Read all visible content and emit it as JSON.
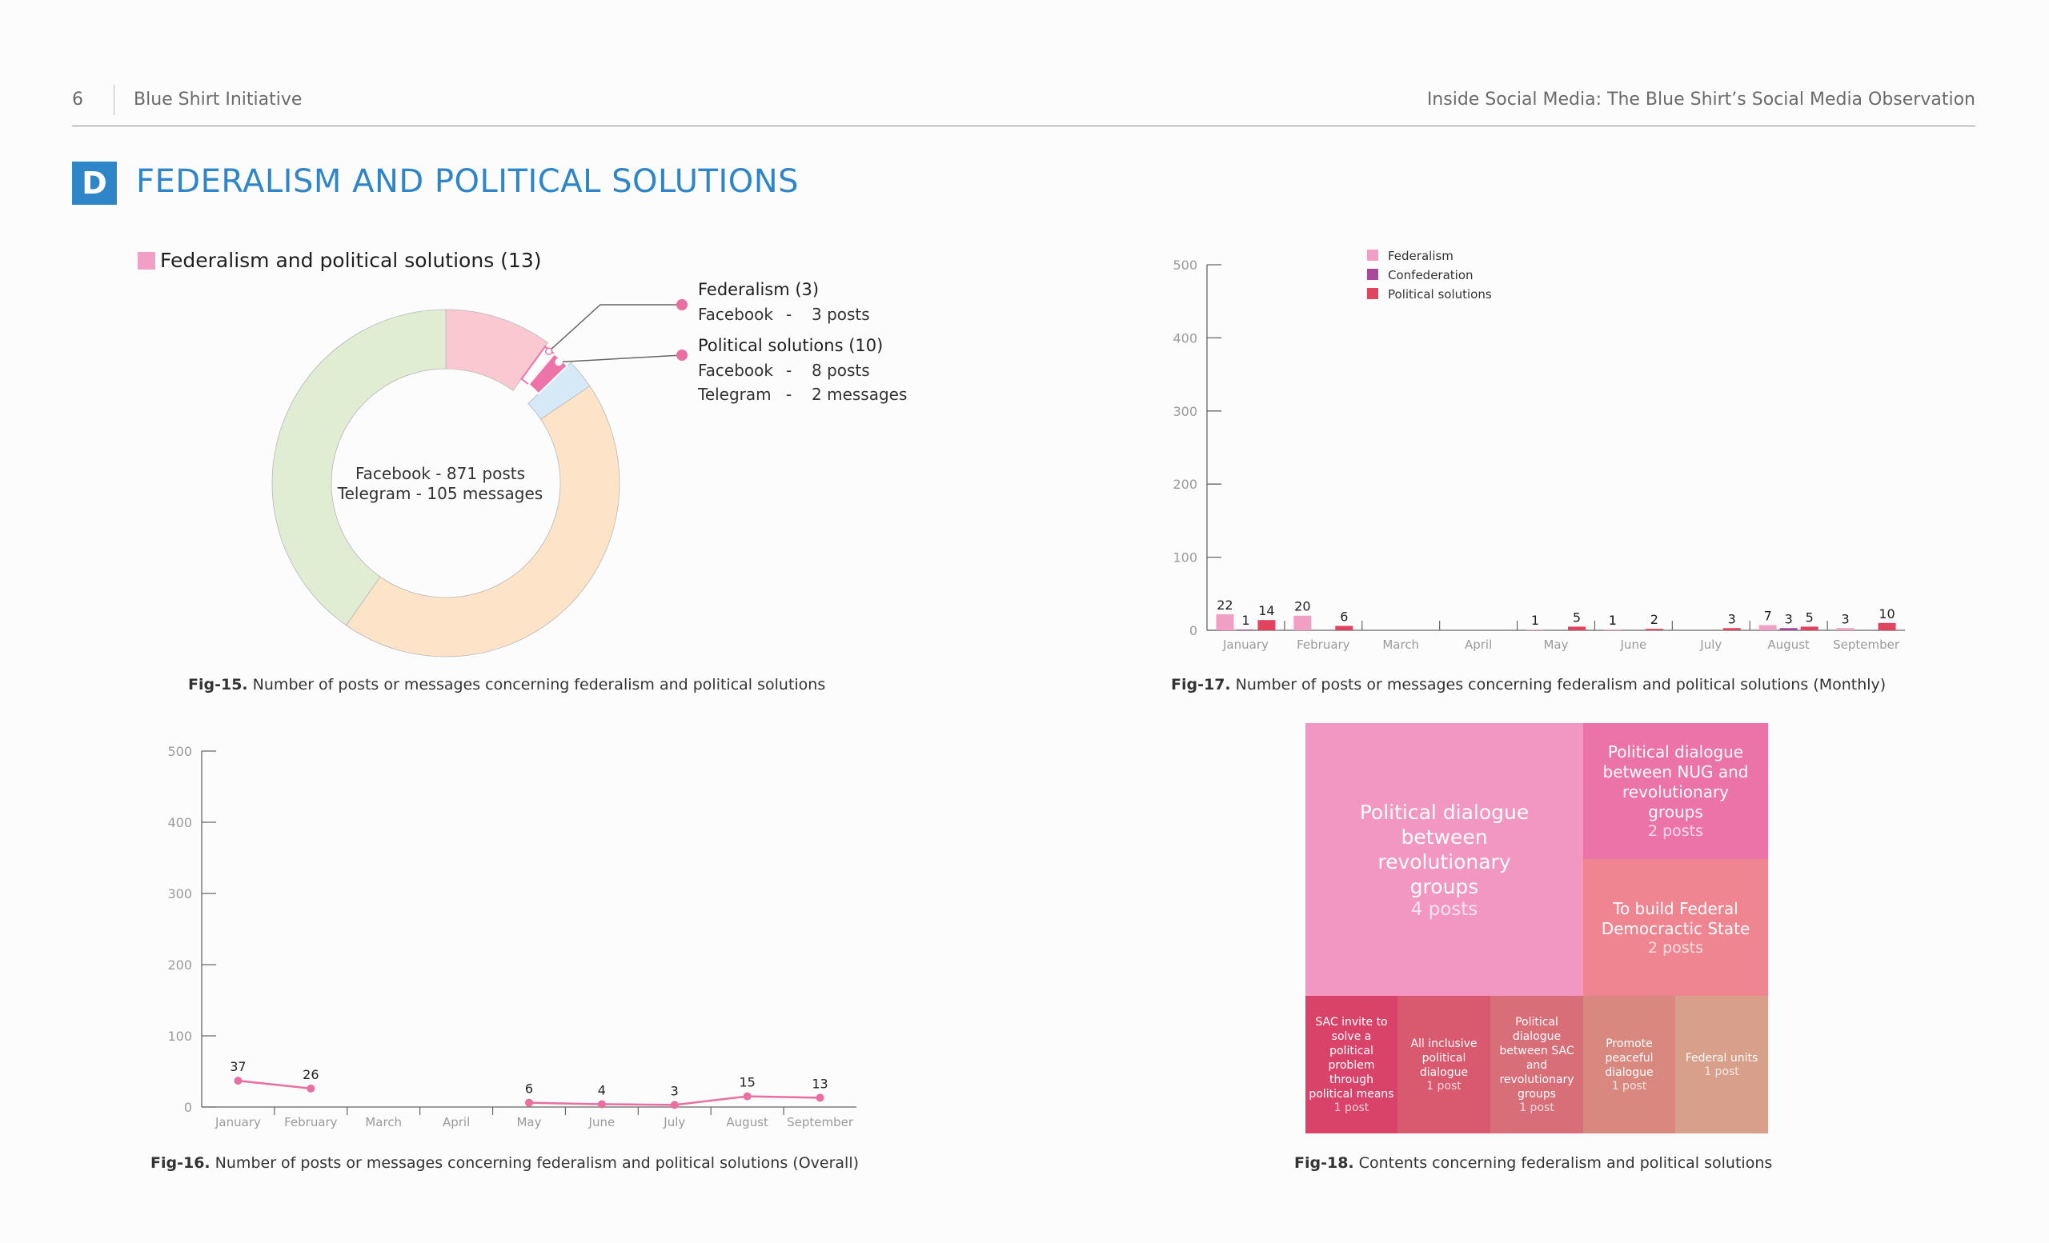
{
  "header": {
    "page_number": "6",
    "org": "Blue Shirt Initiative",
    "report_title": "Inside Social Media: The Blue Shirt’s Social Media Observation"
  },
  "section": {
    "badge": "D",
    "title": "FEDERALISM AND POLITICAL SOLUTIONS"
  },
  "colors": {
    "accent_blue": "#2e86c8",
    "federalism": "#f29fc5",
    "confederation": "#a8489a",
    "political_solutions": "#e0445f",
    "line_pink": "#e86fa0",
    "donut_green": "#e1edd2",
    "donut_peach": "#fde4c8",
    "donut_pink": "#f9c8d0",
    "donut_lightblue": "#d5e9f7",
    "donut_magenta": "#ec74a8"
  },
  "fig15": {
    "caption_label": "Fig-15.",
    "caption_text": " Number of posts or messages concerning federalism and political solutions",
    "legend": "Federalism and political solutions (13)",
    "center_line1": "Facebook - 871 posts",
    "center_line2": "Telegram - 105 messages",
    "callouts": [
      {
        "title": "Federalism (3)",
        "rows": [
          {
            "source": "Facebook",
            "dash": "-",
            "value": "3 posts"
          }
        ]
      },
      {
        "title": "Political solutions (10)",
        "rows": [
          {
            "source": "Facebook",
            "dash": "-",
            "value": "8 posts"
          },
          {
            "source": "Telegram",
            "dash": "-",
            "value": "2 messages"
          }
        ]
      }
    ]
  },
  "fig16": {
    "caption_label": "Fig-16.",
    "caption_text": " Number of posts or messages concerning federalism and political solutions  (Overall)"
  },
  "fig17": {
    "caption_label": "Fig-17.",
    "caption_text": " Number of posts or messages concerning federalism and political solutions  (Monthly)"
  },
  "fig18": {
    "caption_label": "Fig-18.",
    "caption_text": " Contents concerning federalism and political solutions",
    "cells": [
      {
        "title": "Political dialogue between revolutionary groups",
        "sub": "4 posts",
        "color": "#f296c2"
      },
      {
        "title": "Political dialogue between NUG and revolutionary groups",
        "sub": "2 posts",
        "color": "#ec73a8"
      },
      {
        "title": "To build Federal Democractic State",
        "sub": "2 posts",
        "color": "#f08592"
      },
      {
        "title": "SAC invite to solve a political problem through political means",
        "sub": "1 post",
        "color": "#d9436a"
      },
      {
        "title": "All inclusive political dialogue",
        "sub": "1 post",
        "color": "#d9596e"
      },
      {
        "title": "Political dialogue between SAC and revolutionary groups",
        "sub": "1 post",
        "color": "#d76e78"
      },
      {
        "title": "Promote peaceful dialogue",
        "sub": "1 post",
        "color": "#d8887f"
      },
      {
        "title": "Federal units",
        "sub": "1 post",
        "color": "#d8a08a"
      }
    ]
  },
  "chart_data": [
    {
      "id": "fig15",
      "type": "pie",
      "title": "Federalism and political solutions (13)",
      "labels": [
        "Federalism",
        "Political solutions"
      ],
      "values": [
        3,
        10
      ]
    },
    {
      "id": "fig16",
      "type": "line",
      "categories": [
        "January",
        "February",
        "March",
        "April",
        "May",
        "June",
        "July",
        "August",
        "September"
      ],
      "series": [
        {
          "values": [
            37,
            26,
            null,
            null,
            6,
            4,
            3,
            15,
            13
          ]
        }
      ],
      "ylim": [
        0,
        500
      ],
      "yticks": [
        0,
        100,
        200,
        300,
        400,
        500
      ]
    },
    {
      "id": "fig17",
      "type": "bar",
      "categories": [
        "January",
        "February",
        "March",
        "April",
        "May",
        "June",
        "July",
        "August",
        "September"
      ],
      "series": [
        {
          "name": "Federalism",
          "values": [
            22,
            20,
            0,
            0,
            0,
            1,
            0,
            7,
            3
          ]
        },
        {
          "name": "Confederation",
          "values": [
            1,
            0,
            0,
            0,
            0,
            0,
            0,
            3,
            0
          ]
        },
        {
          "name": "Political solutions",
          "values": [
            14,
            6,
            0,
            0,
            5,
            2,
            3,
            5,
            10
          ]
        }
      ],
      "extra_labels": [
        {
          "month": "May",
          "value": 1
        },
        {
          "month": "June",
          "value": 1
        }
      ],
      "ylim": [
        0,
        500
      ],
      "yticks": [
        0,
        100,
        200,
        300,
        400,
        500
      ],
      "legend": "top"
    },
    {
      "id": "fig18",
      "type": "treemap",
      "labels": [
        "Political dialogue between revolutionary groups",
        "Political dialogue between NUG and revolutionary groups",
        "To build Federal Democractic State",
        "SAC invite to solve a political problem through political means",
        "All inclusive political dialogue",
        "Political dialogue between SAC and revolutionary groups",
        "Promote peaceful dialogue",
        "Federal units"
      ],
      "values": [
        4,
        2,
        2,
        1,
        1,
        1,
        1,
        1
      ]
    }
  ]
}
